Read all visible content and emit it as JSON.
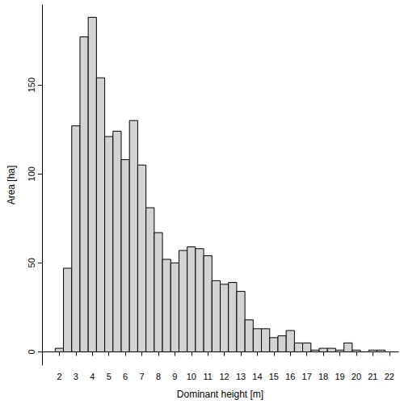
{
  "chart_data": {
    "type": "histogram",
    "xlabel": "Dominant height [m]",
    "ylabel": "Area [ha]",
    "bins": [
      1.75,
      2.25,
      2.75,
      3.25,
      3.75,
      4.25,
      4.75,
      5.25,
      5.75,
      6.25,
      6.75,
      7.25,
      7.75,
      8.25,
      8.75,
      9.25,
      9.75,
      10.25,
      10.75,
      11.25,
      11.75,
      12.25,
      12.75,
      13.25,
      13.75,
      14.25,
      14.75,
      15.25,
      15.75,
      16.25,
      16.75,
      17.25,
      17.75,
      18.25,
      18.75,
      19.25,
      19.75,
      20.25,
      20.75,
      21.25,
      21.75
    ],
    "counts": [
      2,
      47,
      127,
      177,
      188,
      154,
      121,
      124,
      108,
      130,
      105,
      81,
      67,
      52,
      50,
      57,
      59,
      58,
      54,
      40,
      38,
      39,
      34,
      18,
      13,
      13,
      8,
      9,
      12,
      5,
      5,
      1,
      2,
      2,
      1,
      5,
      1,
      0,
      1,
      1
    ],
    "color": "#d3d3d3",
    "xlim": [
      0.95,
      22.55
    ],
    "xticks": [
      2,
      3,
      4,
      5,
      6,
      7,
      8,
      9,
      10,
      11,
      12,
      13,
      14,
      15,
      16,
      17,
      18,
      19,
      20,
      21,
      22
    ],
    "ylim": [
      -7.5,
      195
    ],
    "yticks": [
      0,
      50,
      100,
      150
    ],
    "grid": false
  }
}
